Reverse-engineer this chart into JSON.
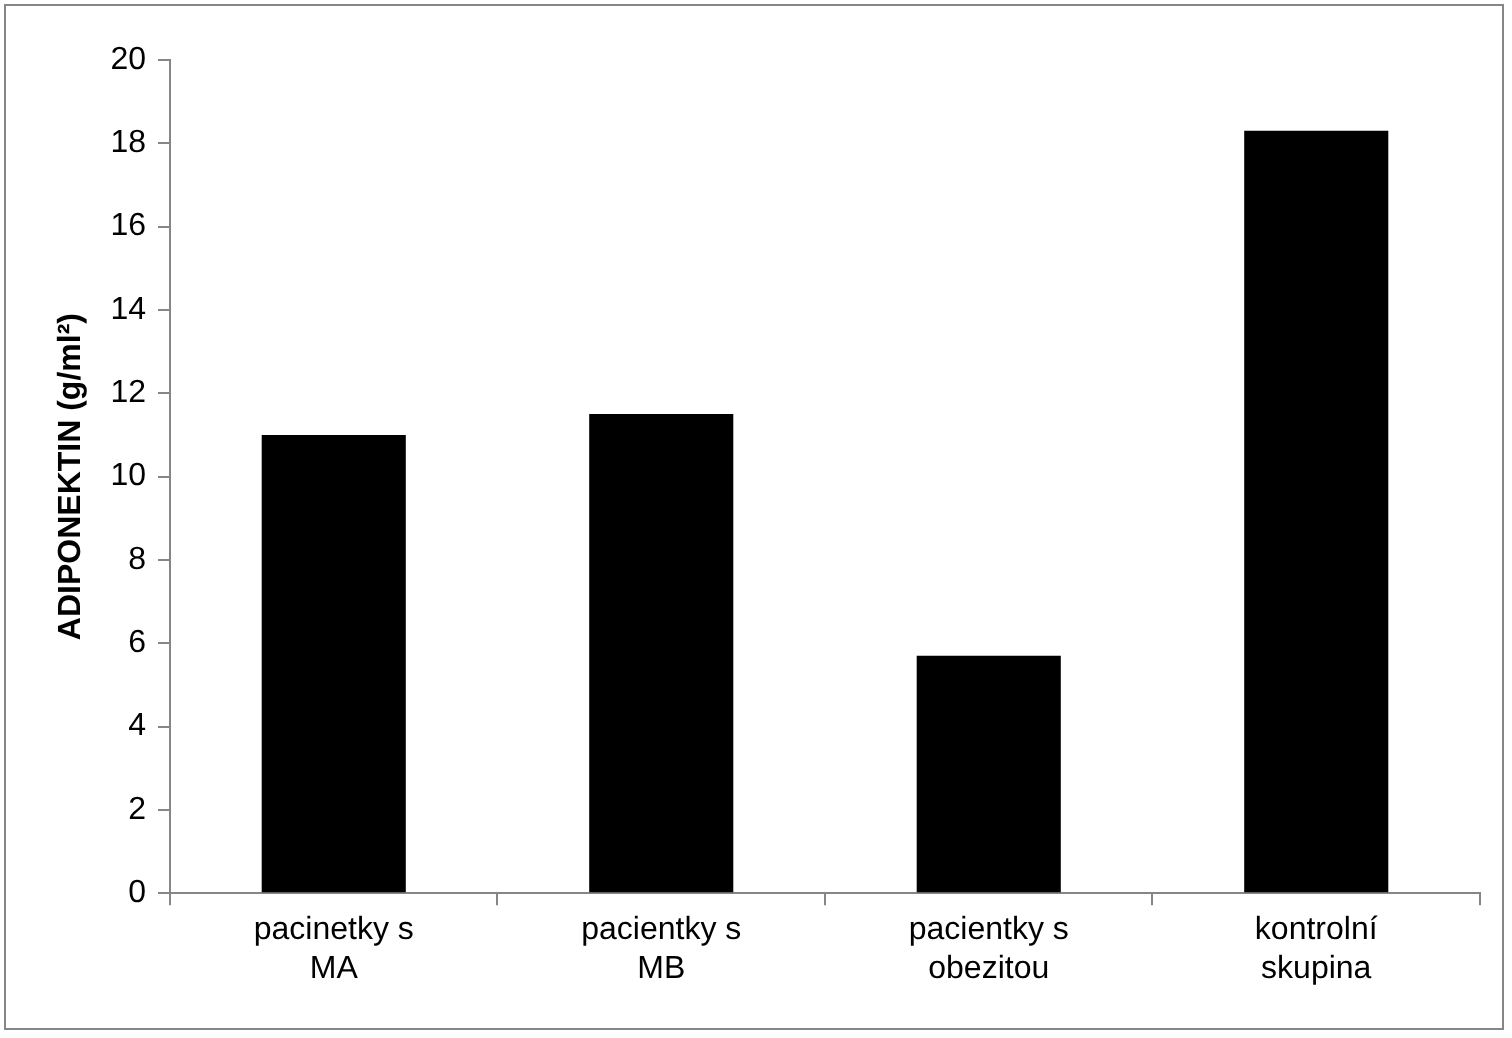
{
  "chart_data": {
    "type": "bar",
    "ylabel": "ADIPONEKTIN (g/ml²)",
    "categories": [
      "pacinetky s MA",
      "pacientky s MB",
      "pacientky s obezitou",
      "kontrolní skupina"
    ],
    "values": [
      11.0,
      11.5,
      5.7,
      18.3
    ],
    "color": "#000000",
    "ylim": [
      0,
      20
    ],
    "yticks": [
      0,
      2,
      4,
      6,
      8,
      10,
      12,
      14,
      16,
      18,
      20
    ],
    "grid": false,
    "legend": false
  }
}
